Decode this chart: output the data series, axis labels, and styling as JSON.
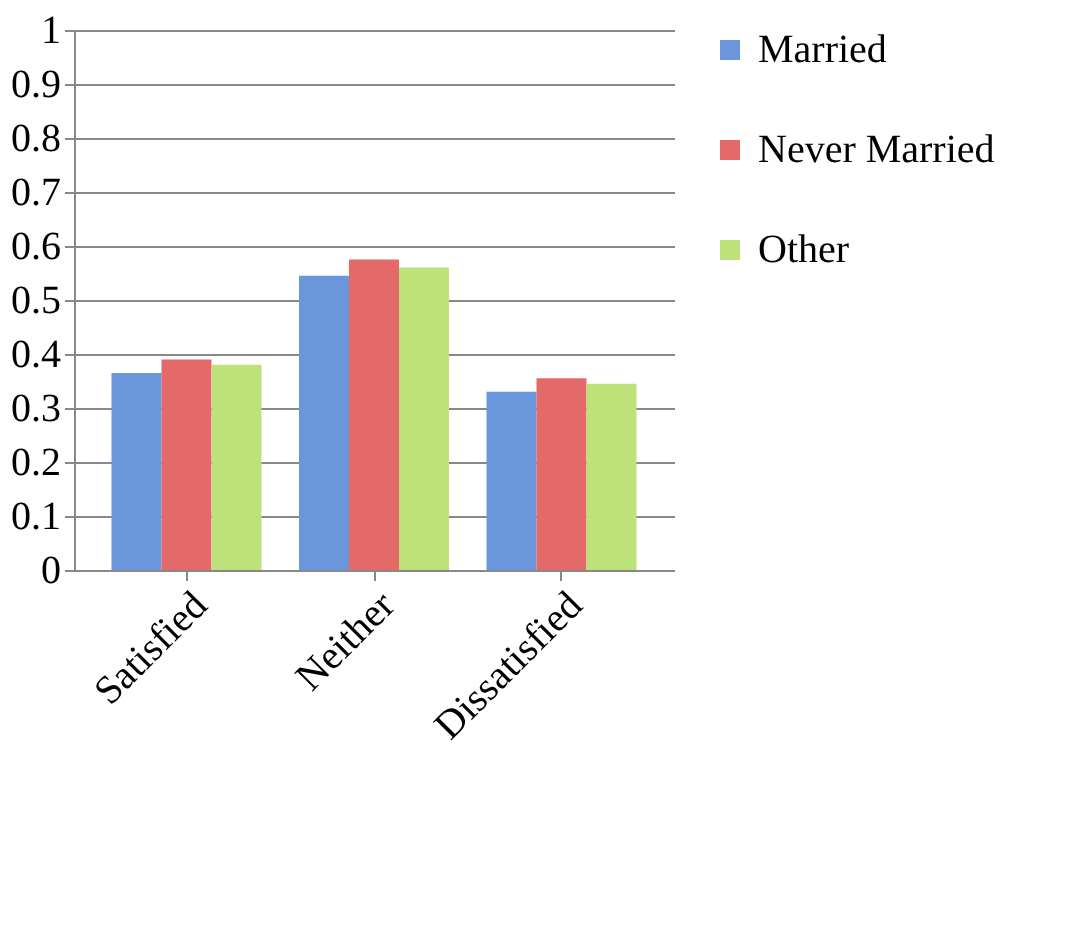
{
  "chart_data": {
    "type": "bar",
    "categories": [
      "Satisfied",
      "Neither",
      "Dissatisfied"
    ],
    "series": [
      {
        "name": "Married",
        "color": "#6a96dc",
        "values": [
          0.365,
          0.545,
          0.33
        ]
      },
      {
        "name": "Never Married",
        "color": "#e46a6a",
        "values": [
          0.39,
          0.575,
          0.355
        ]
      },
      {
        "name": "Other",
        "color": "#bde27a",
        "values": [
          0.38,
          0.56,
          0.345
        ]
      }
    ],
    "ylim": [
      0,
      1
    ],
    "yticks": [
      0,
      0.1,
      0.2,
      0.3,
      0.4,
      0.5,
      0.6,
      0.7,
      0.8,
      0.9,
      1
    ],
    "grid": "y",
    "legend": "right"
  }
}
